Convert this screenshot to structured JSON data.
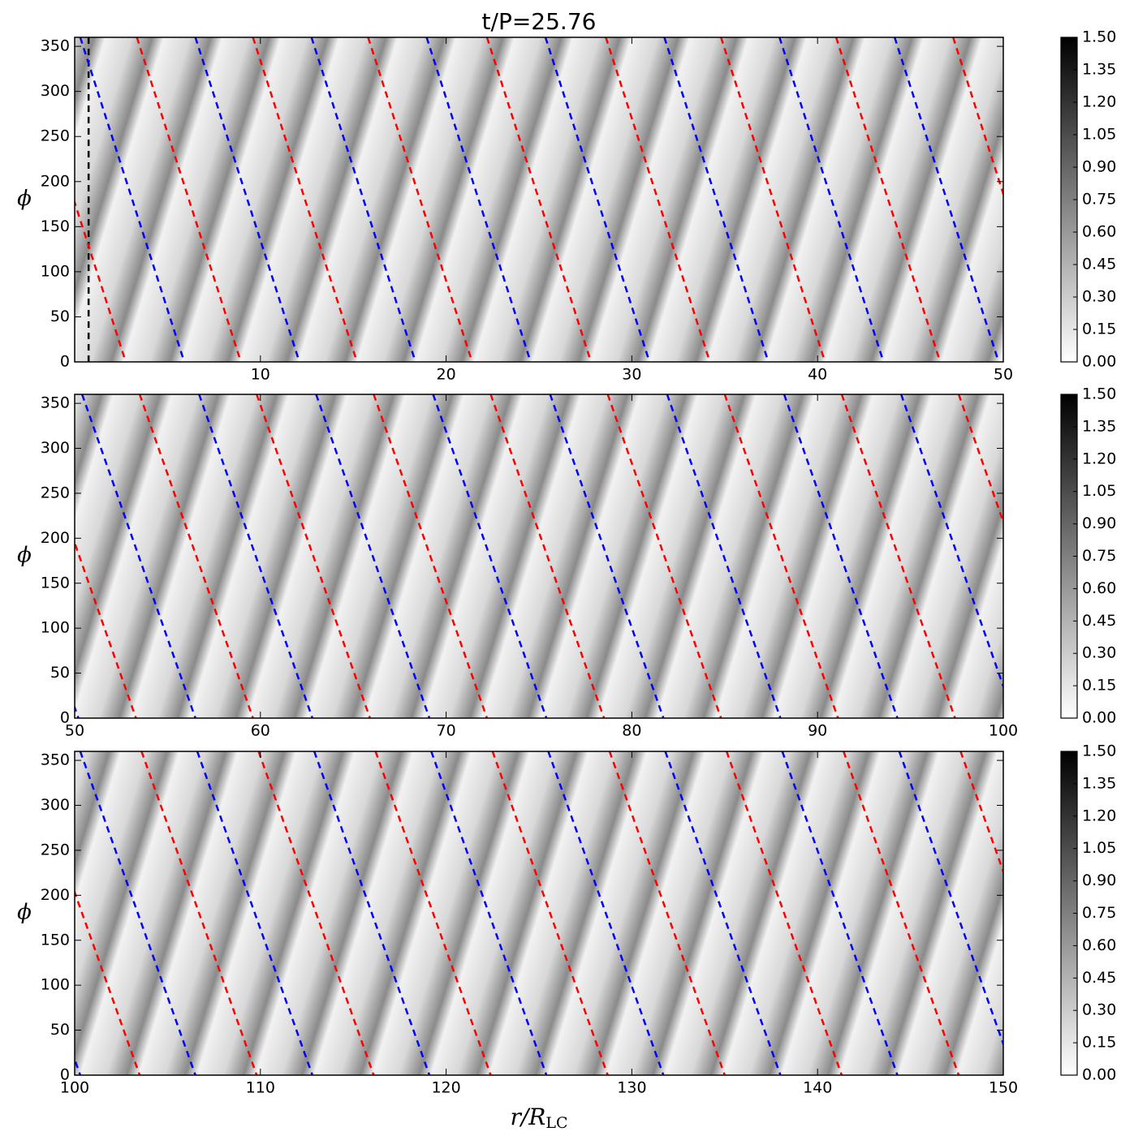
{
  "chart_data": [
    {
      "type": "heatmap",
      "title": "t/P=25.76",
      "y_label": "ϕ",
      "xlim": [
        0,
        50
      ],
      "xticks": [
        10,
        20,
        30,
        40,
        50
      ],
      "ylim": [
        0,
        360
      ],
      "yticks": [
        0,
        50,
        100,
        150,
        200,
        250,
        300,
        350
      ],
      "clim": [
        0,
        1.5
      ],
      "cticks": [
        {
          "value": 0,
          "label": "0.00"
        },
        {
          "value": 0.15,
          "label": "0.15"
        },
        {
          "value": 0.3,
          "label": "0.30"
        },
        {
          "value": 0.45,
          "label": "0.45"
        },
        {
          "value": 0.6,
          "label": "0.60"
        },
        {
          "value": 0.75,
          "label": "0.75"
        },
        {
          "value": 0.9,
          "label": "0.90"
        },
        {
          "value": 1.05,
          "label": "1.05"
        },
        {
          "value": 1.2,
          "label": "1.20"
        },
        {
          "value": 1.35,
          "label": "1.35"
        },
        {
          "value": 1.5,
          "label": "1.50"
        }
      ],
      "lines": [
        {
          "color": "#000000",
          "x": [
            0.75,
            0.75
          ],
          "y": [
            360,
            0
          ]
        },
        {
          "color": "#ff0000",
          "x": [
            -2.85,
            2.75
          ],
          "y": [
            360,
            0
          ]
        },
        {
          "color": "#ff0000",
          "x": [
            3.35,
            8.95
          ],
          "y": [
            360,
            0
          ]
        },
        {
          "color": "#ff0000",
          "x": [
            9.6,
            15.2
          ],
          "y": [
            360,
            0
          ]
        },
        {
          "color": "#ff0000",
          "x": [
            15.8,
            21.4
          ],
          "y": [
            360,
            0
          ]
        },
        {
          "color": "#ff0000",
          "x": [
            22.2,
            27.8
          ],
          "y": [
            360,
            0
          ]
        },
        {
          "color": "#ff0000",
          "x": [
            28.6,
            34.2
          ],
          "y": [
            360,
            0
          ]
        },
        {
          "color": "#ff0000",
          "x": [
            34.8,
            40.4
          ],
          "y": [
            360,
            0
          ]
        },
        {
          "color": "#ff0000",
          "x": [
            41.0,
            46.6
          ],
          "y": [
            360,
            0
          ]
        },
        {
          "color": "#ff0000",
          "x": [
            47.3,
            52.9
          ],
          "y": [
            360,
            0
          ]
        },
        {
          "color": "#0000ff",
          "x": [
            0.3,
            5.9
          ],
          "y": [
            360,
            0
          ]
        },
        {
          "color": "#0000ff",
          "x": [
            6.5,
            12.1
          ],
          "y": [
            360,
            0
          ]
        },
        {
          "color": "#0000ff",
          "x": [
            12.75,
            18.35
          ],
          "y": [
            360,
            0
          ]
        },
        {
          "color": "#0000ff",
          "x": [
            18.95,
            24.55
          ],
          "y": [
            360,
            0
          ]
        },
        {
          "color": "#0000ff",
          "x": [
            25.35,
            30.95
          ],
          "y": [
            360,
            0
          ]
        },
        {
          "color": "#0000ff",
          "x": [
            31.75,
            37.35
          ],
          "y": [
            360,
            0
          ]
        },
        {
          "color": "#0000ff",
          "x": [
            37.95,
            43.55
          ],
          "y": [
            360,
            0
          ]
        },
        {
          "color": "#0000ff",
          "x": [
            44.15,
            49.75
          ],
          "y": [
            360,
            0
          ]
        }
      ]
    },
    {
      "type": "heatmap",
      "y_label": "ϕ",
      "xlim": [
        50,
        100
      ],
      "xticks": [
        50,
        60,
        70,
        80,
        90,
        100
      ],
      "ylim": [
        0,
        360
      ],
      "yticks": [
        0,
        50,
        100,
        150,
        200,
        250,
        300,
        350
      ],
      "clim": [
        0,
        1.5
      ],
      "cticks": [
        {
          "value": 0,
          "label": "0.00"
        },
        {
          "value": 0.15,
          "label": "0.15"
        },
        {
          "value": 0.3,
          "label": "0.30"
        },
        {
          "value": 0.45,
          "label": "0.45"
        },
        {
          "value": 0.6,
          "label": "0.60"
        },
        {
          "value": 0.75,
          "label": "0.75"
        },
        {
          "value": 0.9,
          "label": "0.90"
        },
        {
          "value": 1.05,
          "label": "1.05"
        },
        {
          "value": 1.2,
          "label": "1.20"
        },
        {
          "value": 1.35,
          "label": "1.35"
        },
        {
          "value": 1.5,
          "label": "1.50"
        }
      ],
      "lines": [
        {
          "color": "#ff0000",
          "x": [
            47.2,
            53.3
          ],
          "y": [
            360,
            0
          ]
        },
        {
          "color": "#ff0000",
          "x": [
            53.5,
            59.6
          ],
          "y": [
            360,
            0
          ]
        },
        {
          "color": "#ff0000",
          "x": [
            59.8,
            65.9
          ],
          "y": [
            360,
            0
          ]
        },
        {
          "color": "#ff0000",
          "x": [
            66.1,
            72.2
          ],
          "y": [
            360,
            0
          ]
        },
        {
          "color": "#ff0000",
          "x": [
            72.4,
            78.5
          ],
          "y": [
            360,
            0
          ]
        },
        {
          "color": "#ff0000",
          "x": [
            78.7,
            84.8
          ],
          "y": [
            360,
            0
          ]
        },
        {
          "color": "#ff0000",
          "x": [
            85.0,
            91.1
          ],
          "y": [
            360,
            0
          ]
        },
        {
          "color": "#ff0000",
          "x": [
            91.3,
            97.4
          ],
          "y": [
            360,
            0
          ]
        },
        {
          "color": "#ff0000",
          "x": [
            97.6,
            103.7
          ],
          "y": [
            360,
            0
          ]
        },
        {
          "color": "#0000ff",
          "x": [
            44.1,
            50.2
          ],
          "y": [
            360,
            0
          ]
        },
        {
          "color": "#0000ff",
          "x": [
            50.4,
            56.5
          ],
          "y": [
            360,
            0
          ]
        },
        {
          "color": "#0000ff",
          "x": [
            56.7,
            62.8
          ],
          "y": [
            360,
            0
          ]
        },
        {
          "color": "#0000ff",
          "x": [
            63.0,
            69.1
          ],
          "y": [
            360,
            0
          ]
        },
        {
          "color": "#0000ff",
          "x": [
            69.3,
            75.4
          ],
          "y": [
            360,
            0
          ]
        },
        {
          "color": "#0000ff",
          "x": [
            75.6,
            81.7
          ],
          "y": [
            360,
            0
          ]
        },
        {
          "color": "#0000ff",
          "x": [
            81.9,
            88.0
          ],
          "y": [
            360,
            0
          ]
        },
        {
          "color": "#0000ff",
          "x": [
            88.2,
            94.3
          ],
          "y": [
            360,
            0
          ]
        },
        {
          "color": "#0000ff",
          "x": [
            94.5,
            100.6
          ],
          "y": [
            360,
            0
          ]
        }
      ]
    },
    {
      "type": "heatmap",
      "y_label": "ϕ",
      "x_label": "r/R",
      "x_label_sub": "LC",
      "xlim": [
        100,
        150
      ],
      "xticks": [
        100,
        110,
        120,
        130,
        140,
        150
      ],
      "ylim": [
        0,
        360
      ],
      "yticks": [
        0,
        50,
        100,
        150,
        200,
        250,
        300,
        350
      ],
      "clim": [
        0,
        1.5
      ],
      "cticks": [
        {
          "value": 0,
          "label": "0.00"
        },
        {
          "value": 0.15,
          "label": "0.15"
        },
        {
          "value": 0.3,
          "label": "0.30"
        },
        {
          "value": 0.45,
          "label": "0.45"
        },
        {
          "value": 0.6,
          "label": "0.60"
        },
        {
          "value": 0.75,
          "label": "0.75"
        },
        {
          "value": 0.9,
          "label": "0.90"
        },
        {
          "value": 1.05,
          "label": "1.05"
        },
        {
          "value": 1.2,
          "label": "1.20"
        },
        {
          "value": 1.35,
          "label": "1.35"
        },
        {
          "value": 1.5,
          "label": "1.50"
        }
      ],
      "lines": [
        {
          "color": "#0000ff",
          "x": [
            94.1,
            100.3
          ],
          "y": [
            360,
            0
          ]
        },
        {
          "color": "#0000ff",
          "x": [
            100.3,
            106.5
          ],
          "y": [
            360,
            0
          ]
        },
        {
          "color": "#0000ff",
          "x": [
            106.6,
            112.8
          ],
          "y": [
            360,
            0
          ]
        },
        {
          "color": "#0000ff",
          "x": [
            112.9,
            119.1
          ],
          "y": [
            360,
            0
          ]
        },
        {
          "color": "#0000ff",
          "x": [
            119.2,
            125.4
          ],
          "y": [
            360,
            0
          ]
        },
        {
          "color": "#0000ff",
          "x": [
            125.5,
            131.7
          ],
          "y": [
            360,
            0
          ]
        },
        {
          "color": "#0000ff",
          "x": [
            131.8,
            138.0
          ],
          "y": [
            360,
            0
          ]
        },
        {
          "color": "#0000ff",
          "x": [
            138.1,
            144.3
          ],
          "y": [
            360,
            0
          ]
        },
        {
          "color": "#0000ff",
          "x": [
            144.4,
            150.6
          ],
          "y": [
            360,
            0
          ]
        },
        {
          "color": "#ff0000",
          "x": [
            97.3,
            103.5
          ],
          "y": [
            360,
            0
          ]
        },
        {
          "color": "#ff0000",
          "x": [
            103.6,
            109.8
          ],
          "y": [
            360,
            0
          ]
        },
        {
          "color": "#ff0000",
          "x": [
            109.9,
            116.1
          ],
          "y": [
            360,
            0
          ]
        },
        {
          "color": "#ff0000",
          "x": [
            116.2,
            122.4
          ],
          "y": [
            360,
            0
          ]
        },
        {
          "color": "#ff0000",
          "x": [
            122.5,
            128.7
          ],
          "y": [
            360,
            0
          ]
        },
        {
          "color": "#ff0000",
          "x": [
            128.8,
            135.0
          ],
          "y": [
            360,
            0
          ]
        },
        {
          "color": "#ff0000",
          "x": [
            135.1,
            141.3
          ],
          "y": [
            360,
            0
          ]
        },
        {
          "color": "#ff0000",
          "x": [
            141.4,
            147.6
          ],
          "y": [
            360,
            0
          ]
        },
        {
          "color": "#ff0000",
          "x": [
            147.7,
            153.9
          ],
          "y": [
            360,
            0
          ]
        }
      ]
    }
  ]
}
